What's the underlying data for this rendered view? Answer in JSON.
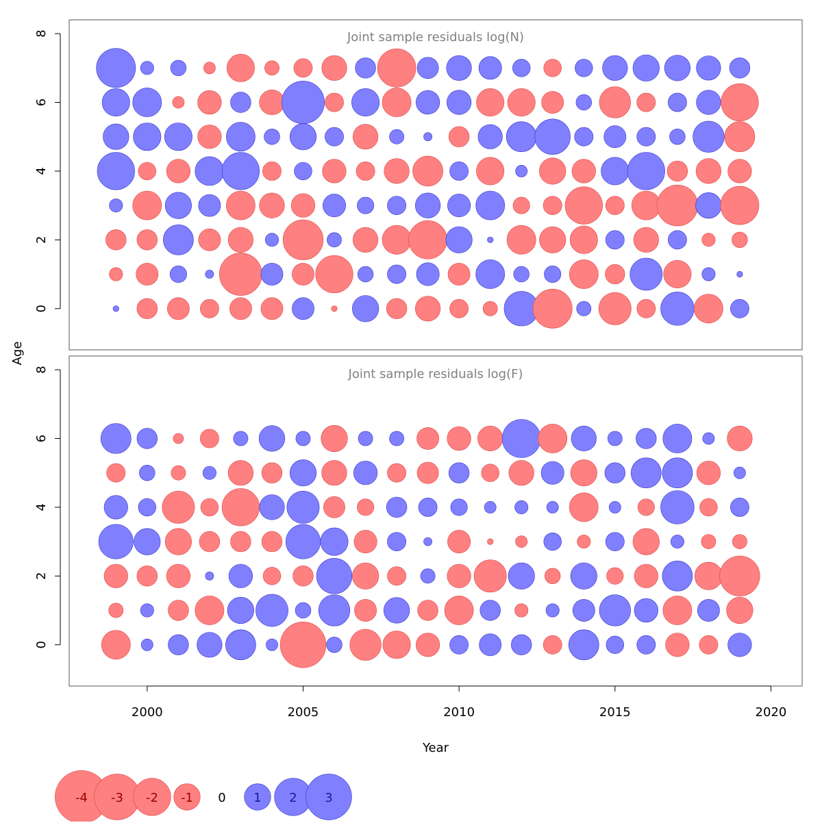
{
  "chart_data": {
    "type": "scatter",
    "subtype": "bubble-residuals",
    "xlabel": "Year",
    "ylabel": "Age",
    "x_ticks": [
      "2000",
      "2005",
      "2010",
      "2015",
      "2020"
    ],
    "x_tick_values": [
      2000,
      2005,
      2010,
      2015,
      2020
    ],
    "xlim": [
      1997.5,
      2021
    ],
    "y_ticks": [
      "0",
      "2",
      "4",
      "6",
      "8"
    ],
    "y_tick_values": [
      0,
      2,
      4,
      6,
      8
    ],
    "ylim": [
      -1.2,
      8.4
    ],
    "years": [
      1999,
      2000,
      2001,
      2002,
      2003,
      2004,
      2005,
      2006,
      2007,
      2008,
      2009,
      2010,
      2011,
      2012,
      2013,
      2014,
      2015,
      2016,
      2017,
      2018,
      2019
    ],
    "colors": {
      "positive": "#8080ff",
      "negative": "#ff8080"
    },
    "panels": [
      {
        "title": "Joint sample residuals log(N)",
        "ages": [
          0,
          1,
          2,
          3,
          4,
          5,
          6,
          7
        ],
        "residuals": [
          [
            0.05,
            -0.6,
            -0.7,
            -0.5,
            -0.7,
            -0.7,
            0.7,
            -0.05,
            1.0,
            -0.6,
            -0.9,
            -0.5,
            -0.3,
            1.7,
            -2.2,
            0.3,
            -1.5,
            -0.5,
            1.6,
            -1.2,
            0.5
          ],
          [
            -0.25,
            -0.7,
            0.4,
            0.1,
            -2.6,
            0.7,
            -0.7,
            -2.0,
            0.35,
            0.5,
            0.75,
            -0.7,
            1.2,
            0.35,
            0.4,
            -1.2,
            -0.55,
            1.5,
            -1.1,
            0.25,
            0.05
          ],
          [
            -0.6,
            -0.6,
            1.3,
            -0.7,
            -0.9,
            0.25,
            -2.3,
            0.3,
            -0.9,
            -1.2,
            -2.1,
            1.0,
            0.05,
            -1.2,
            -1.0,
            -1.1,
            0.5,
            -0.9,
            0.5,
            -0.25,
            -0.35
          ],
          [
            0.25,
            -1.2,
            1.0,
            0.7,
            -1.2,
            -0.9,
            -0.8,
            0.75,
            0.4,
            0.5,
            0.9,
            0.75,
            1.2,
            -0.4,
            -0.5,
            -2.0,
            -0.5,
            -1.2,
            -2.4,
            0.95,
            -2.1
          ],
          [
            2.0,
            -0.45,
            -0.8,
            1.2,
            2.0,
            -0.5,
            0.45,
            -0.8,
            -0.5,
            -0.9,
            -1.3,
            0.5,
            -1.1,
            0.2,
            -1.0,
            -0.8,
            1.1,
            2.0,
            -0.6,
            -0.9,
            -0.8
          ],
          [
            0.95,
            1.1,
            1.1,
            -0.8,
            1.2,
            0.35,
            1.0,
            0.5,
            -0.9,
            0.3,
            0.1,
            -0.6,
            0.85,
            1.3,
            1.8,
            0.5,
            0.7,
            0.5,
            0.35,
            1.4,
            -1.3
          ],
          [
            1.1,
            1.2,
            -0.2,
            -0.8,
            0.6,
            -0.9,
            2.6,
            -0.5,
            1.1,
            -1.2,
            0.8,
            0.85,
            -1.1,
            -1.1,
            -0.7,
            0.35,
            -1.4,
            -0.5,
            0.5,
            0.85,
            -2.0
          ],
          [
            2.2,
            0.25,
            0.35,
            -0.2,
            -1.1,
            -0.3,
            -0.5,
            -0.9,
            0.6,
            -2.1,
            0.65,
            0.9,
            0.75,
            0.45,
            -0.45,
            0.45,
            0.9,
            1.0,
            0.95,
            0.85,
            0.6
          ]
        ]
      },
      {
        "title": "Joint sample residuals log(F)",
        "ages": [
          0,
          1,
          2,
          3,
          4,
          5,
          6
        ],
        "residuals": [
          [
            -1.2,
            0.2,
            0.6,
            0.9,
            1.3,
            0.2,
            -3.0,
            0.35,
            -1.4,
            -1.1,
            -0.8,
            0.5,
            0.7,
            0.6,
            -0.5,
            1.3,
            0.45,
            0.5,
            -0.8,
            -0.5,
            0.8
          ],
          [
            -0.3,
            0.25,
            -0.6,
            -1.2,
            1.0,
            1.5,
            0.35,
            1.4,
            -0.7,
            0.95,
            -0.6,
            -1.2,
            0.6,
            -0.25,
            0.25,
            0.7,
            1.4,
            0.8,
            -1.2,
            0.7,
            -1.0
          ],
          [
            -0.8,
            -0.6,
            -0.8,
            0.1,
            0.8,
            -0.45,
            -0.6,
            1.8,
            -1.0,
            -0.5,
            0.3,
            -0.8,
            -1.5,
            1.0,
            -0.35,
            1.0,
            -0.4,
            -0.8,
            1.3,
            -1.1,
            -2.3
          ],
          [
            1.7,
            1.0,
            -1.0,
            -0.6,
            -0.6,
            -0.6,
            1.7,
            1.1,
            -0.75,
            0.5,
            0.1,
            -0.75,
            -0.05,
            -0.2,
            0.45,
            -0.25,
            0.5,
            -1.0,
            0.25,
            -0.3,
            -0.3
          ],
          [
            0.8,
            0.45,
            -1.5,
            -0.45,
            -2.0,
            0.9,
            1.5,
            -0.65,
            -0.4,
            0.6,
            0.5,
            0.4,
            0.2,
            0.25,
            0.2,
            -1.2,
            0.2,
            -0.4,
            1.6,
            -0.45,
            0.5
          ],
          [
            -0.5,
            0.35,
            -0.3,
            0.25,
            -0.9,
            -0.6,
            1.0,
            -0.9,
            0.8,
            -0.5,
            -0.65,
            0.6,
            -0.45,
            -0.9,
            0.75,
            -1.0,
            0.6,
            1.3,
            1.3,
            -0.8,
            0.2
          ],
          [
            1.3,
            0.6,
            -0.15,
            -0.5,
            0.3,
            0.95,
            0.3,
            -1.0,
            0.3,
            0.3,
            -0.7,
            -0.8,
            -0.9,
            2.1,
            -1.2,
            0.9,
            0.3,
            0.6,
            1.2,
            0.2,
            -0.9
          ]
        ]
      }
    ],
    "legend": [
      {
        "label": "-4",
        "value": -4
      },
      {
        "label": "-3",
        "value": -3
      },
      {
        "label": "-2",
        "value": -2
      },
      {
        "label": "-1",
        "value": -1
      },
      {
        "label": "0",
        "value": 0
      },
      {
        "label": "1",
        "value": 1
      },
      {
        "label": "2",
        "value": 2
      },
      {
        "label": "3",
        "value": 3
      }
    ]
  }
}
